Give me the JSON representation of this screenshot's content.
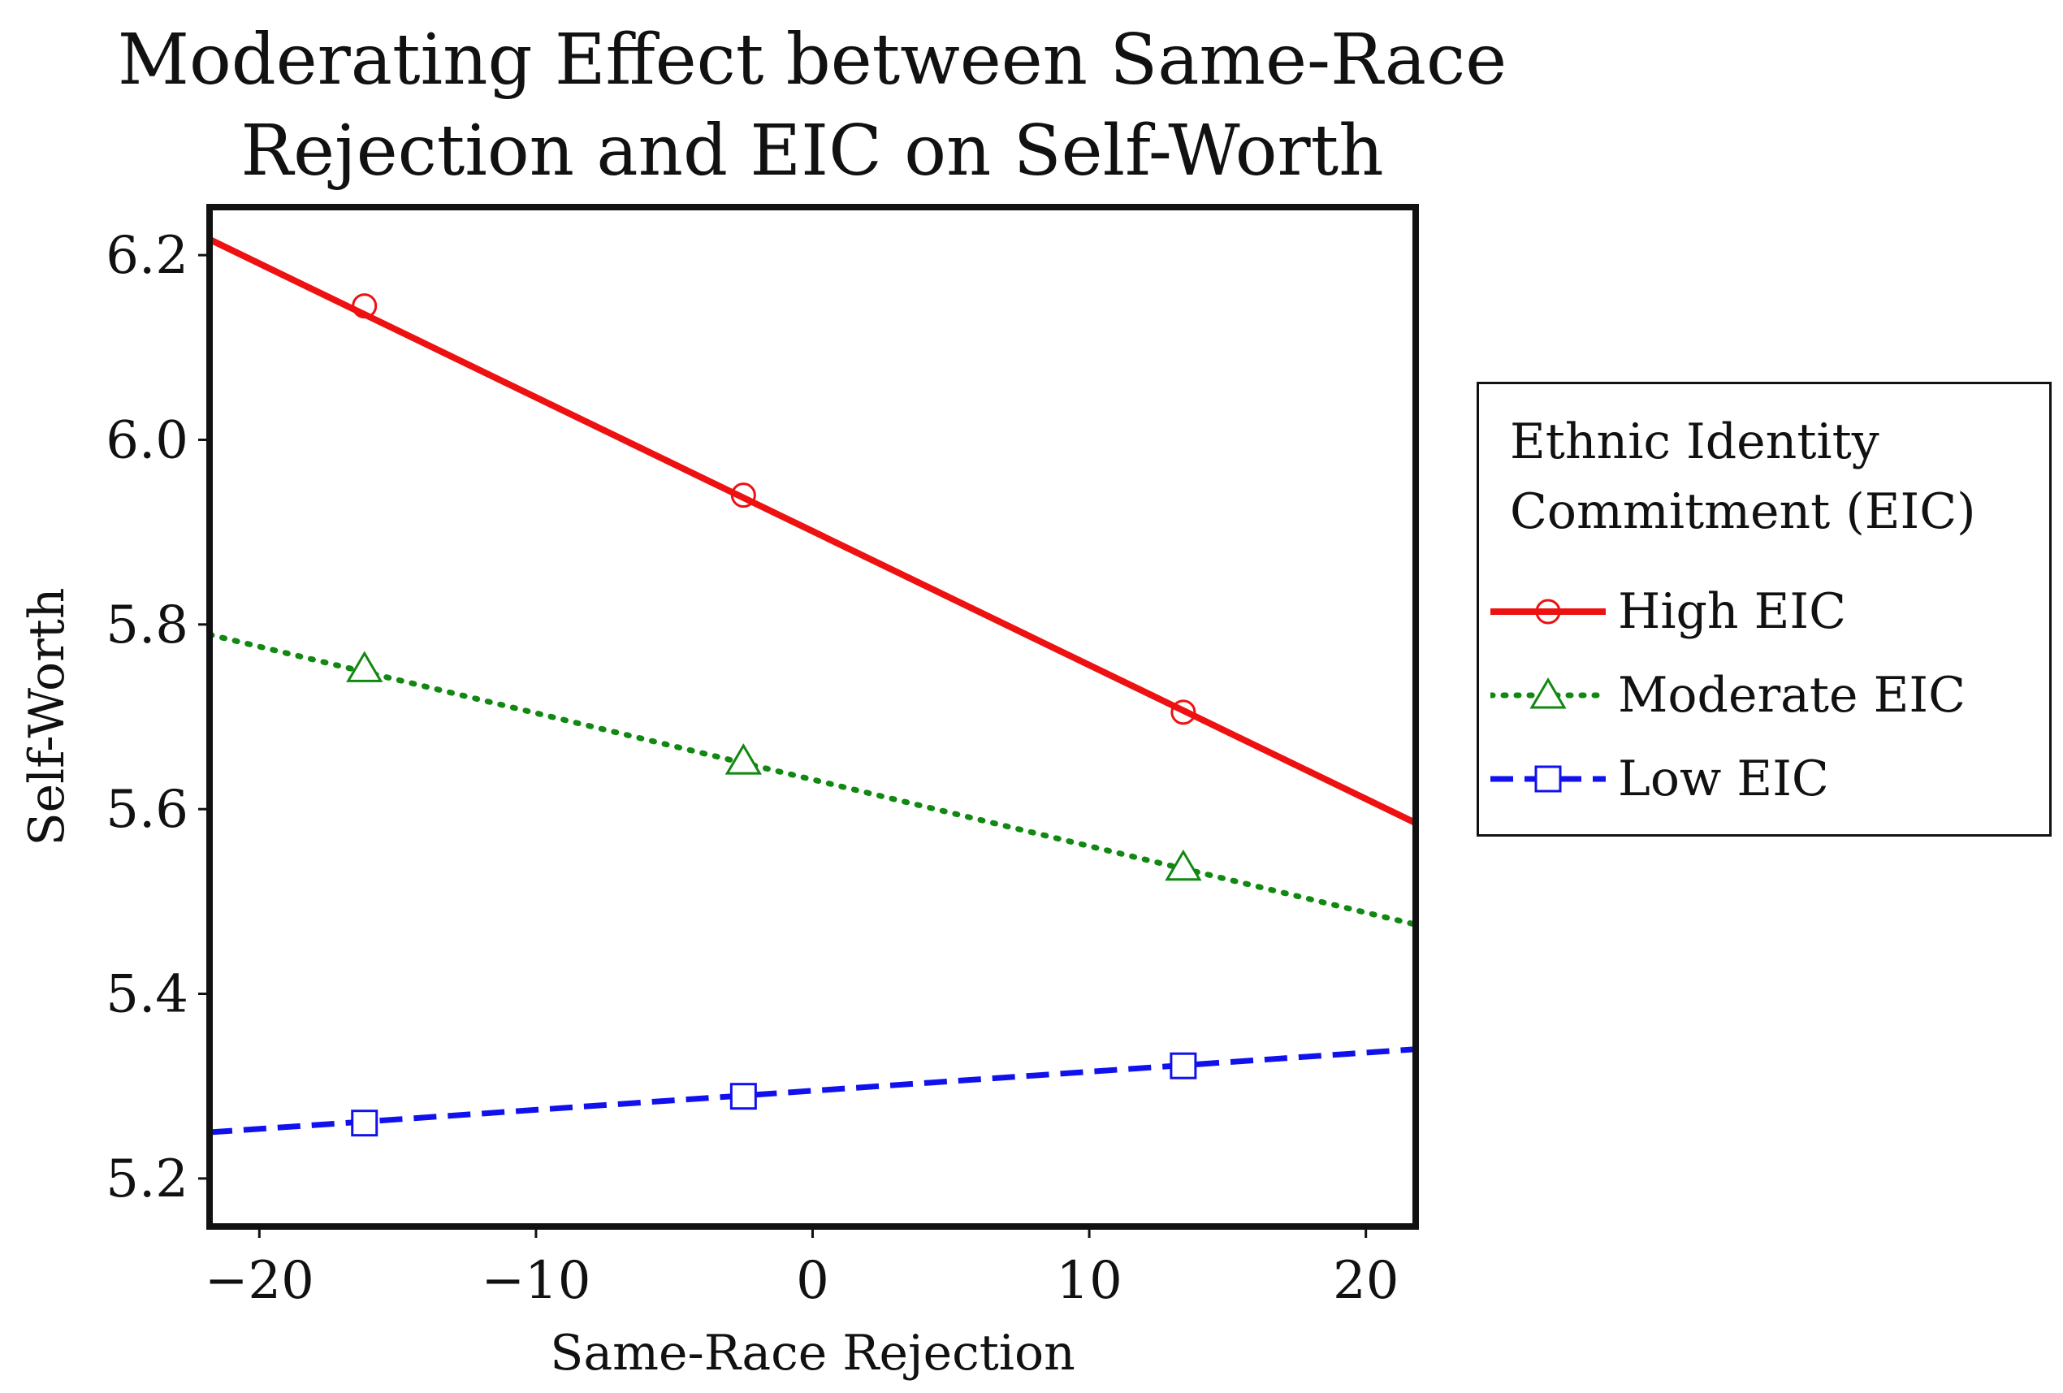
{
  "chart_data": {
    "type": "line",
    "title": [
      "Moderating Effect between Same-Race",
      "Rejection and EIC on Self-Worth"
    ],
    "xlabel": "Same-Race Rejection",
    "ylabel": "Self-Worth",
    "xlim": [
      -21.8,
      21.8
    ],
    "ylim": [
      5.148,
      6.252
    ],
    "xticks": [
      -20,
      -10,
      0,
      10,
      20
    ],
    "xtick_labels": [
      "−20",
      "−10",
      "0",
      "10",
      "20"
    ],
    "yticks": [
      5.2,
      5.4,
      5.6,
      5.8,
      6.0,
      6.2
    ],
    "ytick_labels": [
      "5.2",
      "5.4",
      "5.6",
      "5.8",
      "6.0",
      "6.2"
    ],
    "grid": false,
    "legend": {
      "title": [
        "Ethnic Identity",
        "Commitment (EIC)"
      ],
      "placement": "right, outside plot"
    },
    "series": [
      {
        "name": "High EIC",
        "color": "#ee1111",
        "line_style": "solid",
        "marker": "circle",
        "line": {
          "x": [
            -21.8,
            21.8
          ],
          "y": [
            6.217,
            5.585
          ]
        },
        "x": [
          -16.2,
          -2.5,
          13.4
        ],
        "y": [
          6.145,
          5.94,
          5.705
        ]
      },
      {
        "name": "Moderate EIC",
        "color": "#118811",
        "line_style": "dotted",
        "marker": "triangle",
        "line": {
          "x": [
            -21.8,
            21.8
          ],
          "y": [
            5.789,
            5.475
          ]
        },
        "x": [
          -16.2,
          -2.5,
          13.4
        ],
        "y": [
          5.752,
          5.652,
          5.537
        ]
      },
      {
        "name": "Low EIC",
        "color": "#1111ee",
        "line_style": "dashed",
        "marker": "square",
        "line": {
          "x": [
            -21.8,
            21.8
          ],
          "y": [
            5.25,
            5.34
          ]
        },
        "x": [
          -16.2,
          -2.5,
          13.4
        ],
        "y": [
          5.26,
          5.289,
          5.322
        ]
      }
    ]
  }
}
